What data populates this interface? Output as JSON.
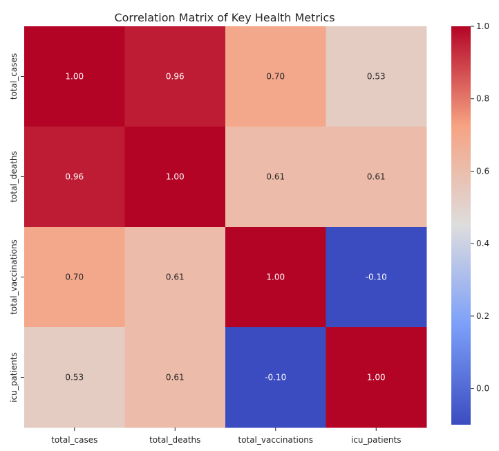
{
  "chart_data": {
    "type": "heatmap",
    "title": "Correlation Matrix of Key Health Metrics",
    "rows": [
      "total_cases",
      "total_deaths",
      "total_vaccinations",
      "icu_patients"
    ],
    "columns": [
      "total_cases",
      "total_deaths",
      "total_vaccinations",
      "icu_patients"
    ],
    "values": [
      [
        1.0,
        0.96,
        0.7,
        0.53
      ],
      [
        0.96,
        1.0,
        0.61,
        0.61
      ],
      [
        0.7,
        0.61,
        1.0,
        -0.1
      ],
      [
        0.53,
        0.61,
        -0.1,
        1.0
      ]
    ],
    "cell_labels": [
      [
        "1.00",
        "0.96",
        "0.70",
        "0.53"
      ],
      [
        "0.96",
        "1.00",
        "0.61",
        "0.61"
      ],
      [
        "0.70",
        "0.61",
        "1.00",
        "-0.10"
      ],
      [
        "0.53",
        "0.61",
        "-0.10",
        "1.00"
      ]
    ],
    "colormap": "coolwarm",
    "colorbar": {
      "vmin": -0.1,
      "vmax": 1.0,
      "ticks": [
        0.0,
        0.2,
        0.4,
        0.6,
        0.8,
        1.0
      ],
      "tick_labels": [
        "0.0",
        "0.2",
        "0.4",
        "0.6",
        "0.8",
        "1.0"
      ]
    },
    "colors": {
      "low": "#3b4cc0",
      "mid": "#dddddd",
      "high": "#b40426",
      "text_dark": "#262626",
      "text_light": "#ffffff"
    }
  }
}
